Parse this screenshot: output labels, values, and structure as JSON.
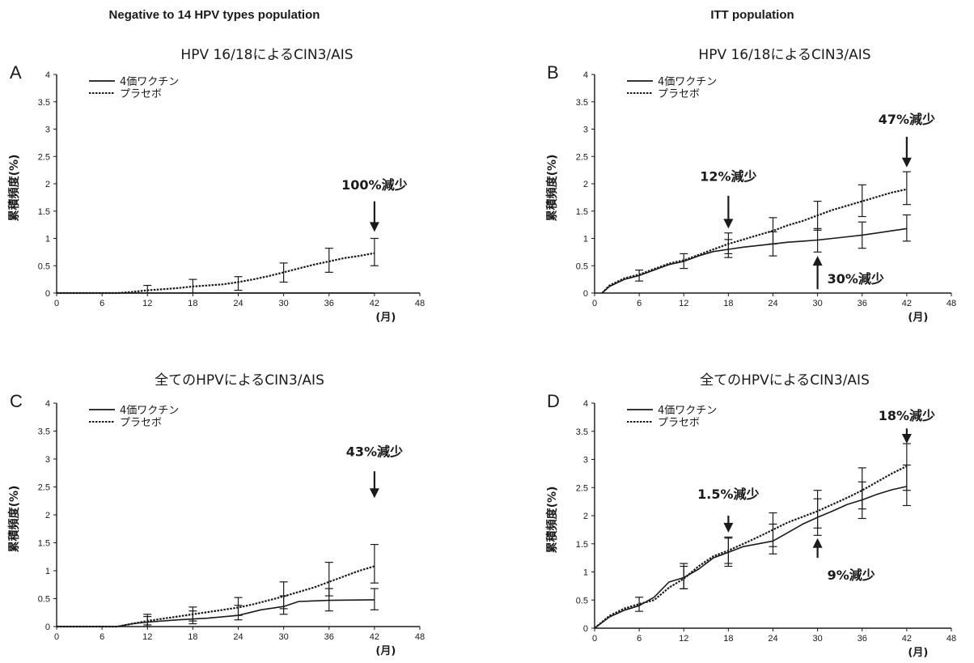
{
  "column_headings": [
    "Negative to 14 HPV types population",
    "ITT population"
  ],
  "colors": {
    "ink": "#1a1a1a",
    "background": "#ffffff"
  },
  "chart_data": [
    {
      "panel": "A",
      "type": "line",
      "title": "HPV 16/18によるCIN3/AIS",
      "ylabel": "累積頻度(%)",
      "xunit": "(月)",
      "xlim": [
        0,
        48
      ],
      "ylim": [
        0,
        4
      ],
      "xticks": [
        0,
        6,
        12,
        18,
        24,
        30,
        36,
        42,
        48
      ],
      "yticks": [
        0,
        0.5,
        1,
        1.5,
        2,
        2.5,
        3,
        3.5,
        4
      ],
      "legend": [
        "4価ワクチン",
        "プラセボ"
      ],
      "legend_position": "top-left",
      "series": [
        {
          "name": "4価ワクチン",
          "style": "solid",
          "x": [
            0,
            42
          ],
          "y": [
            0,
            0
          ],
          "error_bars": []
        },
        {
          "name": "プラセボ",
          "style": "dotted",
          "x": [
            0,
            8,
            10,
            12,
            14,
            16,
            18,
            20,
            22,
            24,
            26,
            28,
            30,
            32,
            34,
            36,
            38,
            40,
            42
          ],
          "y": [
            0,
            0,
            0.02,
            0.05,
            0.07,
            0.09,
            0.12,
            0.14,
            0.16,
            0.2,
            0.25,
            0.31,
            0.38,
            0.45,
            0.52,
            0.58,
            0.64,
            0.68,
            0.73
          ],
          "error_bars": [
            [
              12,
              0,
              0.14
            ],
            [
              18,
              0,
              0.25
            ],
            [
              24,
              0.05,
              0.3
            ],
            [
              30,
              0.2,
              0.55
            ],
            [
              36,
              0.38,
              0.82
            ],
            [
              42,
              0.5,
              1.0
            ]
          ]
        }
      ],
      "annotations": [
        {
          "text": "100%減少",
          "x": 42,
          "arrow": "down",
          "ytext": 1.9,
          "y_from": 1.68,
          "y_to": 1.12
        }
      ]
    },
    {
      "panel": "B",
      "type": "line",
      "title": "HPV 16/18によるCIN3/AIS",
      "ylabel": "累積頻度(%)",
      "xunit": "(月)",
      "xlim": [
        0,
        48
      ],
      "ylim": [
        0,
        4
      ],
      "xticks": [
        0,
        6,
        12,
        18,
        24,
        30,
        36,
        42,
        48
      ],
      "yticks": [
        0,
        0.5,
        1,
        1.5,
        2,
        2.5,
        3,
        3.5,
        4
      ],
      "legend": [
        "4価ワクチン",
        "プラセボ"
      ],
      "legend_position": "top-left",
      "series": [
        {
          "name": "4価ワクチン",
          "style": "solid",
          "x": [
            1,
            2,
            4,
            6,
            8,
            10,
            12,
            14,
            16,
            18,
            20,
            22,
            24,
            26,
            28,
            30,
            32,
            34,
            36,
            38,
            40,
            42
          ],
          "y": [
            0,
            0.12,
            0.25,
            0.32,
            0.42,
            0.52,
            0.58,
            0.68,
            0.76,
            0.8,
            0.84,
            0.87,
            0.9,
            0.93,
            0.95,
            0.97,
            1.0,
            1.03,
            1.06,
            1.1,
            1.14,
            1.18
          ],
          "error_bars": [
            [
              6,
              0.22,
              0.42
            ],
            [
              12,
              0.45,
              0.72
            ],
            [
              18,
              0.65,
              0.98
            ],
            [
              24,
              0.68,
              1.12
            ],
            [
              30,
              0.75,
              1.18
            ],
            [
              36,
              0.82,
              1.3
            ],
            [
              42,
              0.95,
              1.43
            ]
          ]
        },
        {
          "name": "プラセボ",
          "style": "dotted",
          "x": [
            1,
            2,
            4,
            6,
            8,
            10,
            12,
            14,
            16,
            18,
            20,
            22,
            24,
            26,
            28,
            30,
            32,
            34,
            36,
            38,
            40,
            42
          ],
          "y": [
            0,
            0.14,
            0.27,
            0.34,
            0.44,
            0.54,
            0.6,
            0.7,
            0.8,
            0.9,
            0.98,
            1.06,
            1.14,
            1.24,
            1.32,
            1.42,
            1.52,
            1.6,
            1.68,
            1.76,
            1.84,
            1.9
          ],
          "error_bars": [
            [
              18,
              0.72,
              1.1
            ],
            [
              24,
              0.9,
              1.38
            ],
            [
              30,
              1.15,
              1.68
            ],
            [
              36,
              1.4,
              1.98
            ],
            [
              42,
              1.62,
              2.22
            ]
          ]
        }
      ],
      "annotations": [
        {
          "text": "12%減少",
          "x": 18,
          "arrow": "down",
          "ytext": 2.05,
          "y_from": 1.78,
          "y_to": 1.18
        },
        {
          "text": "47%減少",
          "x": 42,
          "arrow": "down",
          "ytext": 3.1,
          "y_from": 2.86,
          "y_to": 2.3
        },
        {
          "text": "30%減少",
          "x": 30,
          "arrow": "up",
          "ytext": 0.27,
          "y_from": 0.07,
          "y_to": 0.68
        }
      ]
    },
    {
      "panel": "C",
      "type": "line",
      "title": "全てのHPVによるCIN3/AIS",
      "ylabel": "累積頻度(%)",
      "xunit": "(月)",
      "xlim": [
        0,
        48
      ],
      "ylim": [
        0,
        4
      ],
      "xticks": [
        0,
        6,
        12,
        18,
        24,
        30,
        36,
        42,
        48
      ],
      "yticks": [
        0,
        0.5,
        1,
        1.5,
        2,
        2.5,
        3,
        3.5,
        4
      ],
      "legend": [
        "4価ワクチン",
        "プラセボ"
      ],
      "legend_position": "top-left",
      "series": [
        {
          "name": "4価ワクチン",
          "style": "solid",
          "x": [
            0,
            8,
            10,
            12,
            16,
            20,
            24,
            27,
            30,
            32,
            36,
            42
          ],
          "y": [
            0,
            0,
            0.05,
            0.08,
            0.12,
            0.15,
            0.2,
            0.3,
            0.36,
            0.45,
            0.47,
            0.48
          ],
          "error_bars": [
            [
              12,
              0,
              0.18
            ],
            [
              18,
              0.05,
              0.28
            ],
            [
              24,
              0.12,
              0.38
            ],
            [
              30,
              0.22,
              0.55
            ],
            [
              36,
              0.28,
              0.68
            ],
            [
              42,
              0.3,
              0.68
            ]
          ]
        },
        {
          "name": "プラセボ",
          "style": "dotted",
          "x": [
            0,
            8,
            10,
            12,
            14,
            16,
            18,
            20,
            22,
            24,
            26,
            28,
            30,
            32,
            34,
            36,
            38,
            40,
            42
          ],
          "y": [
            0,
            0,
            0.05,
            0.1,
            0.14,
            0.18,
            0.22,
            0.26,
            0.3,
            0.34,
            0.4,
            0.47,
            0.54,
            0.62,
            0.7,
            0.8,
            0.9,
            1.0,
            1.08
          ],
          "error_bars": [
            [
              12,
              0.03,
              0.22
            ],
            [
              18,
              0.1,
              0.35
            ],
            [
              24,
              0.2,
              0.52
            ],
            [
              30,
              0.32,
              0.8
            ],
            [
              36,
              0.55,
              1.15
            ],
            [
              42,
              0.78,
              1.47
            ]
          ]
        }
      ],
      "annotations": [
        {
          "text": "43%減少",
          "x": 42,
          "arrow": "down",
          "ytext": 3.05,
          "y_from": 2.78,
          "y_to": 2.3
        }
      ]
    },
    {
      "panel": "D",
      "type": "line",
      "title": "全てのHPVによるCIN3/AIS",
      "ylabel": "累積頻度(%)",
      "xunit": "(月)",
      "xlim": [
        0,
        48
      ],
      "ylim": [
        0,
        4
      ],
      "xticks": [
        0,
        6,
        12,
        18,
        24,
        30,
        36,
        42,
        48
      ],
      "yticks": [
        0,
        0.5,
        1,
        1.5,
        2,
        2.5,
        3,
        3.5,
        4
      ],
      "legend": [
        "4価ワクチン",
        "プラセボ"
      ],
      "legend_position": "top-left",
      "series": [
        {
          "name": "4価ワクチン",
          "style": "solid",
          "x": [
            0,
            2,
            4,
            6,
            8,
            10,
            12,
            14,
            16,
            18,
            20,
            22,
            24,
            26,
            28,
            30,
            32,
            34,
            36,
            38,
            40,
            42
          ],
          "y": [
            0,
            0.2,
            0.32,
            0.4,
            0.55,
            0.82,
            0.9,
            1.05,
            1.25,
            1.35,
            1.45,
            1.5,
            1.55,
            1.7,
            1.85,
            1.97,
            2.08,
            2.2,
            2.28,
            2.38,
            2.46,
            2.52
          ],
          "error_bars": [
            [
              6,
              0.3,
              0.55
            ],
            [
              12,
              0.7,
              1.1
            ],
            [
              18,
              1.1,
              1.6
            ],
            [
              24,
              1.32,
              1.85
            ],
            [
              30,
              1.65,
              2.3
            ],
            [
              36,
              1.95,
              2.6
            ],
            [
              42,
              2.18,
              2.9
            ]
          ]
        },
        {
          "name": "プラセボ",
          "style": "dotted",
          "x": [
            0,
            2,
            4,
            6,
            8,
            10,
            12,
            14,
            16,
            18,
            20,
            22,
            24,
            26,
            28,
            30,
            32,
            34,
            36,
            38,
            40,
            42
          ],
          "y": [
            0,
            0.22,
            0.35,
            0.43,
            0.5,
            0.72,
            0.88,
            1.1,
            1.28,
            1.38,
            1.5,
            1.62,
            1.75,
            1.88,
            1.98,
            2.08,
            2.2,
            2.32,
            2.45,
            2.6,
            2.75,
            2.88
          ],
          "error_bars": [
            [
              12,
              0.7,
              1.15
            ],
            [
              18,
              1.15,
              1.62
            ],
            [
              24,
              1.45,
              2.05
            ],
            [
              30,
              1.78,
              2.45
            ],
            [
              36,
              2.12,
              2.85
            ],
            [
              42,
              2.45,
              3.28
            ]
          ]
        }
      ],
      "annotations": [
        {
          "text": "1.5%減少",
          "x": 18,
          "arrow": "down",
          "ytext": 2.3,
          "y_from": 2.0,
          "y_to": 1.7
        },
        {
          "text": "18%減少",
          "x": 42,
          "arrow": "down",
          "ytext": 3.7,
          "y_from": 3.55,
          "y_to": 3.28
        },
        {
          "text": "9%減少",
          "x": 30,
          "arrow": "up",
          "ytext": 0.95,
          "y_from": 1.25,
          "y_to": 1.6
        }
      ]
    }
  ]
}
